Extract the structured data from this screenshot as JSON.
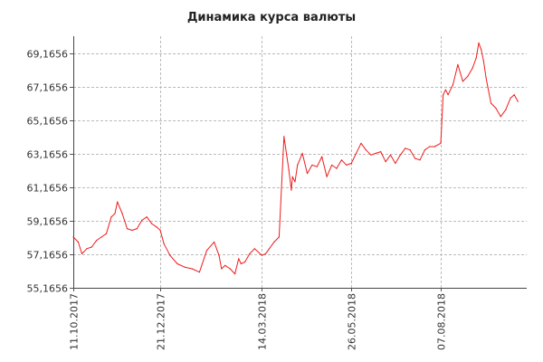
{
  "chart_data": {
    "type": "line",
    "title": "Динамика курса валюты",
    "y_ticks": [
      "55,1656",
      "57,1656",
      "59,1656",
      "61,1656",
      "63,1656",
      "65,1656",
      "67,1656",
      "69,1656"
    ],
    "x_ticks": [
      "11.10.2017",
      "21.12.2017",
      "14.03.2018",
      "26.05.2018",
      "07.08.2018"
    ],
    "ylim": [
      55.1656,
      70.2
    ],
    "grid": true,
    "series": [
      {
        "name": "",
        "color": "#ee1c1c",
        "x": [
          "11.10.2017",
          "15.10.2017",
          "18.10.2017",
          "22.10.2017",
          "26.10.2017",
          "30.10.2017",
          "03.11.2017",
          "07.11.2017",
          "11.11.2017",
          "14.11.2017",
          "16.11.2017",
          "20.11.2017",
          "24.11.2017",
          "28.11.2017",
          "02.12.2017",
          "06.12.2017",
          "10.12.2017",
          "14.12.2017",
          "18.12.2017",
          "21.12.2017",
          "24.12.2017",
          "29.12.2017",
          "04.01.2018",
          "10.01.2018",
          "16.01.2018",
          "22.01.2018",
          "28.01.2018",
          "03.02.2018",
          "07.02.2018",
          "09.02.2018",
          "12.02.2018",
          "16.02.2018",
          "20.02.2018",
          "23.02.2018",
          "25.02.2018",
          "28.02.2018",
          "04.03.2018",
          "08.03.2018",
          "14.03.2018",
          "17.03.2018",
          "20.03.2018",
          "24.03.2018",
          "28.03.2018",
          "01.04.2018",
          "05.04.2018",
          "07.04.2018",
          "08.04.2018",
          "10.04.2018",
          "12.04.2018",
          "16.04.2018",
          "20.04.2018",
          "24.04.2018",
          "28.04.2018",
          "02.05.2018",
          "06.05.2018",
          "10.05.2018",
          "14.05.2018",
          "18.05.2018",
          "22.05.2018",
          "26.05.2018",
          "30.05.2018",
          "03.06.2018",
          "07.06.2018",
          "11.06.2018",
          "15.06.2018",
          "19.06.2018",
          "23.06.2018",
          "27.06.2018",
          "01.07.2018",
          "05.07.2018",
          "09.07.2018",
          "13.07.2018",
          "17.07.2018",
          "21.07.2018",
          "25.07.2018",
          "29.07.2018",
          "02.08.2018",
          "07.08.2018",
          "09.08.2018",
          "11.08.2018",
          "13.08.2018",
          "17.08.2018",
          "21.08.2018",
          "25.08.2018",
          "29.08.2018",
          "02.09.2018",
          "05.09.2018",
          "07.09.2018",
          "09.09.2018",
          "11.09.2018",
          "13.09.2018",
          "17.09.2018",
          "21.09.2018",
          "25.09.2018",
          "29.09.2018",
          "03.10.2018",
          "06.10.2018",
          "09.10.2018"
        ],
        "values": [
          58.2,
          57.9,
          57.2,
          57.5,
          57.6,
          58.0,
          58.2,
          58.4,
          59.4,
          59.6,
          60.3,
          59.6,
          58.7,
          58.6,
          58.7,
          59.2,
          59.4,
          59.0,
          58.8,
          58.6,
          57.8,
          57.1,
          56.6,
          56.4,
          56.3,
          56.1,
          57.4,
          57.9,
          57.1,
          56.3,
          56.5,
          56.3,
          56.0,
          56.9,
          56.6,
          56.7,
          57.2,
          57.5,
          57.1,
          57.2,
          57.5,
          57.9,
          58.2,
          64.2,
          62.2,
          61.0,
          61.8,
          61.5,
          62.5,
          63.2,
          62.0,
          62.5,
          62.4,
          63.0,
          61.8,
          62.5,
          62.3,
          62.8,
          62.5,
          62.6,
          63.2,
          63.8,
          63.4,
          63.1,
          63.2,
          63.3,
          62.7,
          63.1,
          62.6,
          63.1,
          63.5,
          63.4,
          62.9,
          62.8,
          63.4,
          63.6,
          63.6,
          63.8,
          66.7,
          67.0,
          66.7,
          67.3,
          68.5,
          67.5,
          67.8,
          68.3,
          68.9,
          69.8,
          69.4,
          68.7,
          67.7,
          66.2,
          65.9,
          65.4,
          65.8,
          66.5,
          66.7,
          66.3
        ]
      }
    ]
  }
}
